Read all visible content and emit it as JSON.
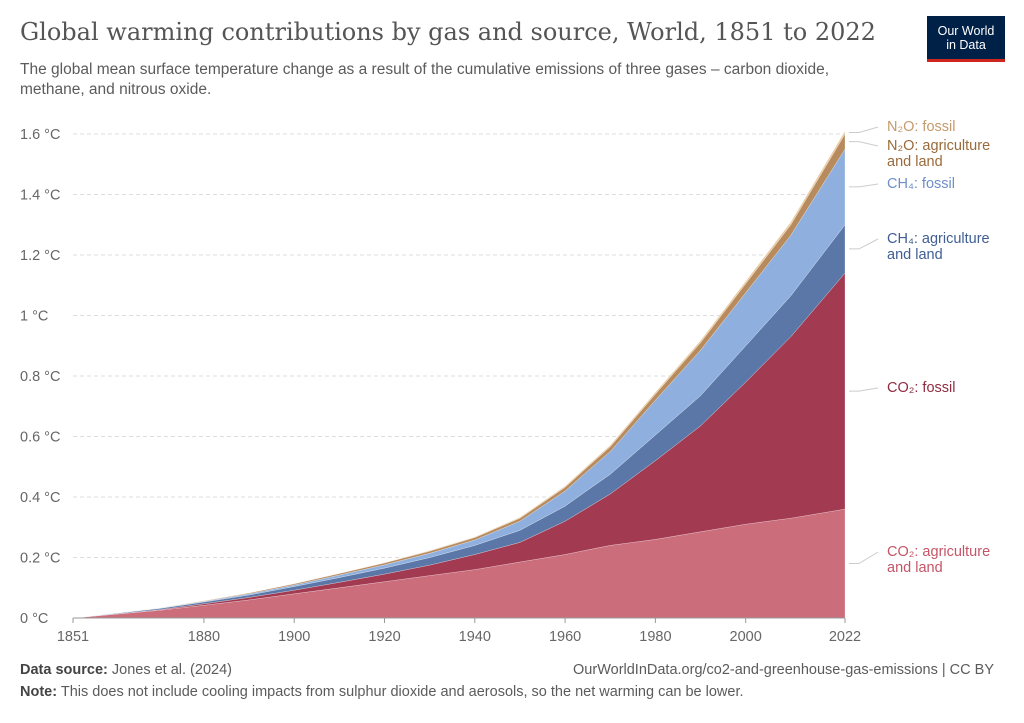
{
  "title": "Global warming contributions by gas and source, World, 1851 to 2022",
  "subtitle": "The global mean surface temperature change as a result of the cumulative emissions of three gases – carbon dioxide, methane, and nitrous oxide.",
  "logo": {
    "line1": "Our World",
    "line2": "in Data"
  },
  "footer": {
    "source_label": "Data source:",
    "source_text": "Jones et al. (2024)",
    "url_text": "OurWorldInData.org/co2-and-greenhouse-gas-emissions | CC BY",
    "note_label": "Note:",
    "note_text": "This does not include cooling impacts from sulphur dioxide and aerosols, so the net warming can be lower."
  },
  "chart_data": {
    "type": "area",
    "stacked": true,
    "x": [
      1851,
      1870,
      1880,
      1890,
      1900,
      1910,
      1920,
      1930,
      1940,
      1950,
      1960,
      1965,
      1970,
      1980,
      1990,
      2000,
      2010,
      2022
    ],
    "xticks": [
      1851,
      1880,
      1900,
      1920,
      1940,
      1960,
      1980,
      2000,
      2022
    ],
    "xtick_labels": [
      "1851",
      "1880",
      "1900",
      "1920",
      "1940",
      "1960",
      "1980",
      "2000",
      "2022"
    ],
    "ylim": [
      0,
      1.6
    ],
    "yticks": [
      0,
      0.2,
      0.4,
      0.6,
      0.8,
      1.0,
      1.2,
      1.4,
      1.6
    ],
    "ytick_labels": [
      "0 °C",
      "0.2 °C",
      "0.4 °C",
      "0.6 °C",
      "0.8 °C",
      "1 °C",
      "1.2 °C",
      "1.4 °C",
      "1.6 °C"
    ],
    "grid": true,
    "series": [
      {
        "name": "CO₂: agriculture and land",
        "color": "#cb6d7b",
        "values": [
          0,
          0.025,
          0.042,
          0.06,
          0.08,
          0.1,
          0.12,
          0.14,
          0.16,
          0.185,
          0.21,
          0.225,
          0.24,
          0.26,
          0.285,
          0.31,
          0.33,
          0.36
        ]
      },
      {
        "name": "CO₂: fossil",
        "color": "#a23b51",
        "values": [
          0,
          0.002,
          0.005,
          0.008,
          0.012,
          0.018,
          0.025,
          0.035,
          0.05,
          0.065,
          0.11,
          0.14,
          0.17,
          0.26,
          0.35,
          0.47,
          0.6,
          0.78
        ]
      },
      {
        "name": "CH₄: agriculture and land",
        "color": "#5b77a8",
        "values": [
          0,
          0.004,
          0.006,
          0.008,
          0.012,
          0.016,
          0.02,
          0.025,
          0.03,
          0.04,
          0.05,
          0.058,
          0.065,
          0.085,
          0.1,
          0.12,
          0.135,
          0.16
        ]
      },
      {
        "name": "CH₄: fossil",
        "color": "#8fb0df",
        "values": [
          0,
          0.001,
          0.002,
          0.004,
          0.005,
          0.008,
          0.011,
          0.014,
          0.018,
          0.03,
          0.05,
          0.063,
          0.075,
          0.115,
          0.15,
          0.175,
          0.2,
          0.25
        ]
      },
      {
        "name": "N₂O: agriculture and land",
        "color": "#b88b5e",
        "values": [
          0,
          0.001,
          0.002,
          0.003,
          0.004,
          0.005,
          0.006,
          0.007,
          0.008,
          0.01,
          0.012,
          0.014,
          0.016,
          0.02,
          0.025,
          0.03,
          0.035,
          0.05
        ]
      },
      {
        "name": "N₂O: fossil",
        "color": "#e8c9a0",
        "values": [
          0,
          0,
          0,
          0,
          0.001,
          0.001,
          0.001,
          0.002,
          0.002,
          0.003,
          0.004,
          0.004,
          0.005,
          0.006,
          0.007,
          0.008,
          0.009,
          0.01
        ]
      }
    ],
    "labels": [
      {
        "series": "N₂O: fossil",
        "lines": [
          "N₂O: fossil"
        ],
        "color": "#c49a6c"
      },
      {
        "series": "N₂O: agriculture and land",
        "lines": [
          "N₂O: agriculture",
          "and land"
        ],
        "color": "#9a6a3a"
      },
      {
        "series": "CH₄: fossil",
        "lines": [
          "CH₄: fossil"
        ],
        "color": "#6d8fc9"
      },
      {
        "series": "CH₄: agriculture and land",
        "lines": [
          "CH₄: agriculture",
          "and land"
        ],
        "color": "#3f5e93"
      },
      {
        "series": "CO₂: fossil",
        "lines": [
          "CO₂: fossil"
        ],
        "color": "#8f2c41"
      },
      {
        "series": "CO₂: agriculture and land",
        "lines": [
          "CO₂: agriculture",
          "and land"
        ],
        "color": "#c45567"
      }
    ]
  }
}
